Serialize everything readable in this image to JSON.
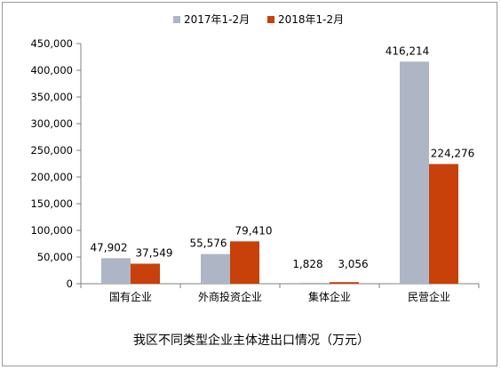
{
  "chart_data": {
    "type": "bar",
    "title": "我区不同类型企业主体进出口情况（万元）",
    "categories": [
      "国有企业",
      "外商投资企业",
      "集体企业",
      "民营企业"
    ],
    "series": [
      {
        "name": "2017年1-2月",
        "color": "#aeb6c6",
        "values": [
          47902,
          55576,
          1828,
          416214
        ],
        "labels": [
          "47,902",
          "55,576",
          "1,828",
          "416,214"
        ]
      },
      {
        "name": "2018年1-2月",
        "color": "#c8400a",
        "values": [
          37549,
          79410,
          3056,
          224276
        ],
        "labels": [
          "37,549",
          "79,410",
          "3,056",
          "224,276"
        ]
      }
    ],
    "y_ticks": [
      0,
      50000,
      100000,
      150000,
      200000,
      250000,
      300000,
      350000,
      400000,
      450000
    ],
    "y_tick_labels": [
      "0",
      "50,000",
      "100,000",
      "150,000",
      "200,000",
      "250,000",
      "300,000",
      "350,000",
      "400,000",
      "450,000"
    ],
    "ylim": [
      0,
      450000
    ],
    "grid": false,
    "legend_position": "top-center"
  }
}
